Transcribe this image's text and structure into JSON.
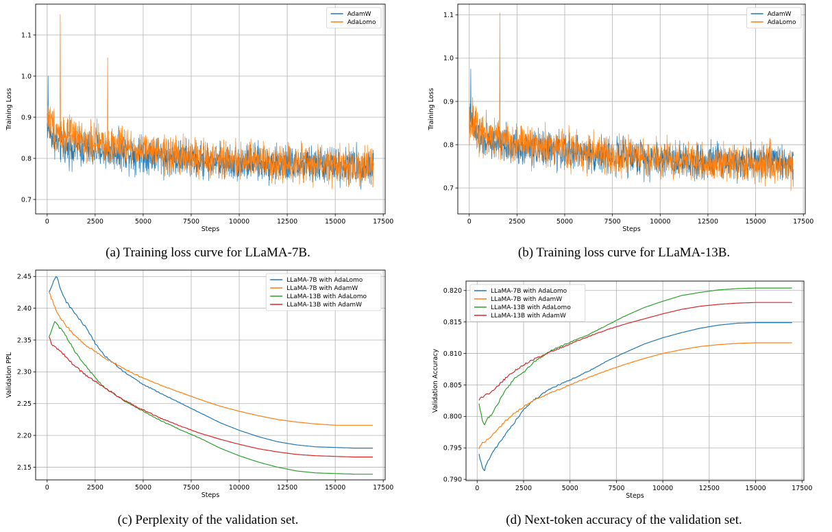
{
  "chart_data": [
    {
      "type": "line",
      "xlabel": "Steps",
      "ylabel": "Training Loss",
      "caption": "(a) Training loss curve for LLaMA-7B.",
      "xlim": [
        -600,
        17600
      ],
      "ylim": [
        0.665,
        1.175
      ],
      "xticks": [
        0,
        2500,
        5000,
        7500,
        10000,
        12500,
        15000,
        17500
      ],
      "yticks": [
        0.7,
        0.8,
        0.9,
        1.0,
        1.1
      ],
      "grid": true,
      "legend_position": "top-right",
      "noise": true,
      "series": [
        {
          "name": "AdamW",
          "color": "#1f77b4",
          "x": [
            0,
            300,
            700,
            1500,
            2500,
            4000,
            5000,
            6000,
            7000,
            8000,
            9000,
            10000,
            11000,
            12000,
            13000,
            14000,
            15000,
            16000,
            17000
          ],
          "y": [
            0.88,
            0.85,
            0.83,
            0.825,
            0.82,
            0.815,
            0.81,
            0.805,
            0.8,
            0.795,
            0.792,
            0.79,
            0.788,
            0.786,
            0.785,
            0.784,
            0.783,
            0.782,
            0.781
          ],
          "amp": [
            0.05,
            0.06,
            0.065,
            0.065,
            0.065,
            0.065,
            0.065,
            0.065,
            0.065,
            0.065,
            0.065,
            0.065,
            0.065,
            0.065,
            0.065,
            0.065,
            0.065,
            0.065,
            0.065
          ]
        },
        {
          "name": "AdaLomo",
          "color": "#ff7f0e",
          "x": [
            0,
            300,
            700,
            1500,
            2500,
            4000,
            5000,
            6000,
            7000,
            8000,
            9000,
            10000,
            11000,
            12000,
            13000,
            14000,
            15000,
            16000,
            17000
          ],
          "y": [
            0.9,
            0.88,
            0.86,
            0.85,
            0.84,
            0.83,
            0.82,
            0.81,
            0.805,
            0.8,
            0.797,
            0.795,
            0.793,
            0.79,
            0.788,
            0.786,
            0.784,
            0.782,
            0.78
          ],
          "amp": [
            0.07,
            0.08,
            0.07,
            0.065,
            0.065,
            0.065,
            0.065,
            0.065,
            0.065,
            0.065,
            0.065,
            0.065,
            0.065,
            0.065,
            0.065,
            0.065,
            0.065,
            0.065,
            0.065
          ]
        }
      ],
      "spikes": [
        {
          "series": 1,
          "x": 680,
          "y": 1.15
        },
        {
          "series": 1,
          "x": 3150,
          "y": 1.045
        },
        {
          "series": 0,
          "x": 50,
          "y": 1.0
        }
      ]
    },
    {
      "type": "line",
      "xlabel": "Steps",
      "ylabel": "Training Loss",
      "caption": "(b) Training loss curve for LLaMA-13B.",
      "xlim": [
        -600,
        17600
      ],
      "ylim": [
        0.64,
        1.125
      ],
      "xticks": [
        0,
        2500,
        5000,
        7500,
        10000,
        12500,
        15000,
        17500
      ],
      "yticks": [
        0.7,
        0.8,
        0.9,
        1.0,
        1.1
      ],
      "grid": true,
      "legend_position": "top-right",
      "noise": true,
      "series": [
        {
          "name": "AdamW",
          "color": "#1f77b4",
          "x": [
            0,
            300,
            700,
            1500,
            2500,
            4000,
            5000,
            6000,
            7000,
            8000,
            9000,
            10000,
            11000,
            12000,
            13000,
            14000,
            15000,
            16000,
            17000
          ],
          "y": [
            0.86,
            0.83,
            0.81,
            0.8,
            0.795,
            0.79,
            0.785,
            0.78,
            0.775,
            0.772,
            0.77,
            0.768,
            0.766,
            0.765,
            0.764,
            0.763,
            0.762,
            0.761,
            0.76
          ],
          "amp": [
            0.06,
            0.06,
            0.06,
            0.06,
            0.06,
            0.06,
            0.06,
            0.06,
            0.06,
            0.06,
            0.06,
            0.06,
            0.06,
            0.06,
            0.06,
            0.06,
            0.06,
            0.06,
            0.06
          ]
        },
        {
          "name": "AdaLomo",
          "color": "#ff7f0e",
          "x": [
            0,
            300,
            700,
            1500,
            2500,
            4000,
            5000,
            6000,
            7000,
            8000,
            9000,
            10000,
            11000,
            12000,
            13000,
            14000,
            15000,
            16000,
            17000
          ],
          "y": [
            0.86,
            0.845,
            0.83,
            0.815,
            0.805,
            0.795,
            0.79,
            0.785,
            0.778,
            0.773,
            0.77,
            0.767,
            0.765,
            0.763,
            0.761,
            0.759,
            0.757,
            0.756,
            0.755
          ],
          "amp": [
            0.07,
            0.075,
            0.07,
            0.065,
            0.065,
            0.065,
            0.065,
            0.065,
            0.065,
            0.065,
            0.065,
            0.065,
            0.065,
            0.065,
            0.065,
            0.065,
            0.065,
            0.065,
            0.065
          ]
        }
      ],
      "spikes": [
        {
          "series": 1,
          "x": 1600,
          "y": 1.105
        },
        {
          "series": 0,
          "x": 80,
          "y": 0.975
        }
      ]
    },
    {
      "type": "line",
      "xlabel": "Steps",
      "ylabel": "Validation PPL",
      "caption": "(c) Perplexity of the validation set.",
      "xlim": [
        -600,
        17600
      ],
      "ylim": [
        2.13,
        2.46
      ],
      "xticks": [
        0,
        2500,
        5000,
        7500,
        10000,
        12500,
        15000,
        17500
      ],
      "yticks": [
        2.15,
        2.2,
        2.25,
        2.3,
        2.35,
        2.4,
        2.45
      ],
      "grid": true,
      "legend_position": "top-right",
      "noise": false,
      "series": [
        {
          "name": "LLaMA-7B with AdaLomo",
          "color": "#1f77b4",
          "x": [
            100,
            300,
            500,
            700,
            1000,
            1500,
            2000,
            2500,
            3000,
            4000,
            5000,
            6000,
            7000,
            8000,
            9000,
            10000,
            11000,
            12000,
            13000,
            14000,
            15000,
            16000,
            17000
          ],
          "y": [
            2.425,
            2.44,
            2.45,
            2.43,
            2.41,
            2.39,
            2.37,
            2.345,
            2.325,
            2.3,
            2.28,
            2.265,
            2.25,
            2.235,
            2.22,
            2.208,
            2.198,
            2.19,
            2.185,
            2.182,
            2.181,
            2.18,
            2.18
          ]
        },
        {
          "name": "LLaMA-7B with AdamW",
          "color": "#ff7f0e",
          "x": [
            100,
            300,
            500,
            700,
            1000,
            1500,
            2000,
            2500,
            3000,
            4000,
            5000,
            6000,
            7000,
            8000,
            9000,
            10000,
            11000,
            12000,
            13000,
            14000,
            15000,
            16000,
            17000
          ],
          "y": [
            2.425,
            2.41,
            2.395,
            2.385,
            2.372,
            2.355,
            2.342,
            2.332,
            2.322,
            2.305,
            2.29,
            2.278,
            2.267,
            2.256,
            2.246,
            2.238,
            2.231,
            2.225,
            2.221,
            2.218,
            2.216,
            2.216,
            2.216
          ]
        },
        {
          "name": "LLaMA-13B with AdaLomo",
          "color": "#2ca02c",
          "x": [
            100,
            200,
            400,
            600,
            800,
            1000,
            1500,
            2000,
            2500,
            3000,
            4000,
            5000,
            6000,
            7000,
            8000,
            9000,
            10000,
            11000,
            12000,
            13000,
            14000,
            15000,
            16000,
            17000
          ],
          "y": [
            2.355,
            2.362,
            2.38,
            2.37,
            2.365,
            2.355,
            2.33,
            2.31,
            2.29,
            2.275,
            2.255,
            2.238,
            2.222,
            2.208,
            2.195,
            2.18,
            2.168,
            2.158,
            2.15,
            2.144,
            2.141,
            2.14,
            2.139,
            2.139
          ]
        },
        {
          "name": "LLaMA-13B with AdamW",
          "color": "#d62728",
          "x": [
            100,
            200,
            400,
            600,
            800,
            1000,
            1500,
            2000,
            2500,
            3000,
            4000,
            5000,
            6000,
            7000,
            8000,
            9000,
            10000,
            11000,
            12000,
            13000,
            14000,
            15000,
            16000,
            17000
          ],
          "y": [
            2.355,
            2.345,
            2.338,
            2.335,
            2.33,
            2.322,
            2.308,
            2.295,
            2.285,
            2.275,
            2.255,
            2.24,
            2.226,
            2.214,
            2.203,
            2.194,
            2.186,
            2.179,
            2.174,
            2.17,
            2.168,
            2.167,
            2.166,
            2.166
          ]
        }
      ]
    },
    {
      "type": "line",
      "xlabel": "Steps",
      "ylabel": "Validation Accuracy",
      "caption": "(d) Next-token accuracy of the validation set.",
      "xlim": [
        -600,
        17600
      ],
      "ylim": [
        0.7898,
        0.8215
      ],
      "xticks": [
        0,
        2500,
        5000,
        7500,
        10000,
        12500,
        15000,
        17500
      ],
      "yticks": [
        0.79,
        0.795,
        0.8,
        0.805,
        0.81,
        0.815,
        0.82
      ],
      "grid": true,
      "legend_position": "top-left",
      "noise": false,
      "series": [
        {
          "name": "LLaMA-7B with AdaLomo",
          "color": "#1f77b4",
          "x": [
            100,
            200,
            300,
            400,
            500,
            700,
            1000,
            1500,
            2000,
            2500,
            3000,
            4000,
            5000,
            6000,
            7000,
            8000,
            9000,
            10000,
            11000,
            12000,
            13000,
            14000,
            15000,
            16000,
            17000
          ],
          "y": [
            0.794,
            0.7928,
            0.7918,
            0.7914,
            0.7925,
            0.7935,
            0.795,
            0.797,
            0.799,
            0.801,
            0.8025,
            0.8045,
            0.8058,
            0.8072,
            0.8088,
            0.8102,
            0.8115,
            0.8125,
            0.8133,
            0.814,
            0.8145,
            0.8148,
            0.8149,
            0.8149,
            0.8149
          ]
        },
        {
          "name": "LLaMA-7B with AdamW",
          "color": "#ff7f0e",
          "x": [
            100,
            200,
            400,
            700,
            1000,
            1500,
            2000,
            2500,
            3000,
            4000,
            5000,
            6000,
            7000,
            8000,
            9000,
            10000,
            11000,
            12000,
            13000,
            14000,
            15000,
            16000,
            17000
          ],
          "y": [
            0.7948,
            0.7955,
            0.796,
            0.7967,
            0.7975,
            0.7992,
            0.8005,
            0.8015,
            0.8025,
            0.8038,
            0.805,
            0.8062,
            0.8073,
            0.8083,
            0.8092,
            0.81,
            0.8106,
            0.8111,
            0.8114,
            0.8116,
            0.8117,
            0.8117,
            0.8117
          ]
        },
        {
          "name": "LLaMA-13B with AdaLomo",
          "color": "#2ca02c",
          "x": [
            100,
            200,
            300,
            400,
            500,
            700,
            1000,
            1500,
            2000,
            2500,
            3000,
            4000,
            5000,
            6000,
            7000,
            8000,
            9000,
            10000,
            11000,
            12000,
            13000,
            14000,
            15000,
            16000,
            17000
          ],
          "y": [
            0.802,
            0.8005,
            0.799,
            0.7985,
            0.7995,
            0.8,
            0.8015,
            0.804,
            0.806,
            0.807,
            0.8085,
            0.8105,
            0.8118,
            0.813,
            0.8145,
            0.816,
            0.8173,
            0.8183,
            0.8192,
            0.8197,
            0.8201,
            0.8203,
            0.8204,
            0.8204,
            0.8204
          ]
        },
        {
          "name": "LLaMA-13B with AdamW",
          "color": "#d62728",
          "x": [
            100,
            200,
            400,
            700,
            1000,
            1500,
            2000,
            2500,
            3000,
            4000,
            5000,
            6000,
            7000,
            8000,
            9000,
            10000,
            11000,
            12000,
            13000,
            14000,
            15000,
            16000,
            17000
          ],
          "y": [
            0.8025,
            0.803,
            0.8033,
            0.8037,
            0.8045,
            0.806,
            0.8072,
            0.8082,
            0.809,
            0.8103,
            0.8115,
            0.8127,
            0.8138,
            0.8147,
            0.8155,
            0.8163,
            0.817,
            0.8175,
            0.8178,
            0.818,
            0.8181,
            0.8181,
            0.8181
          ]
        }
      ]
    }
  ]
}
